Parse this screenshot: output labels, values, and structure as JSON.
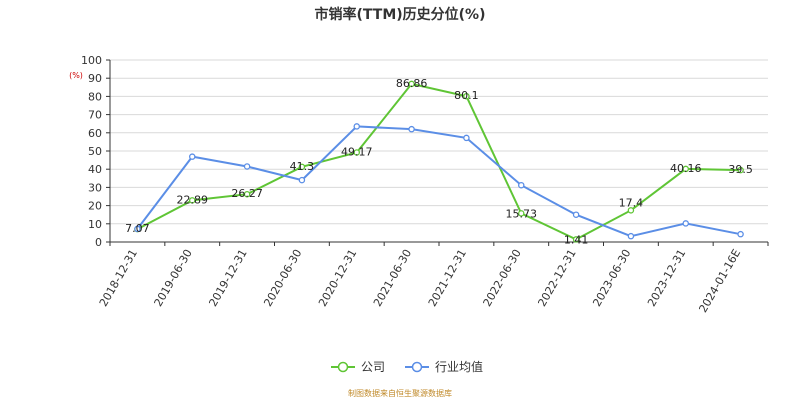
{
  "chart_data": {
    "type": "line",
    "title": "市销率(TTM)历史分位(%)",
    "y_unit": "(%)",
    "categories": [
      "2018-12-31",
      "2019-06-30",
      "2019-12-31",
      "2020-06-30",
      "2020-12-31",
      "2021-06-30",
      "2021-12-31",
      "2022-06-30",
      "2022-12-31",
      "2023-06-30",
      "2023-12-31",
      "2024-01-16E"
    ],
    "ylim": [
      0,
      100
    ],
    "yticks": [
      0,
      10,
      20,
      30,
      40,
      50,
      60,
      70,
      80,
      90,
      100
    ],
    "grid": true,
    "legend_position": "bottom-center",
    "series": [
      {
        "name": "公司",
        "color": "#5fc535",
        "values": [
          7.07,
          22.89,
          26.27,
          41.3,
          49.17,
          86.86,
          80.1,
          15.73,
          1.41,
          17.4,
          40.16,
          39.5
        ],
        "data_labels": [
          "7.07",
          "22.89",
          "26.27",
          "41.3",
          "49.17",
          "86.86",
          "80.1",
          "15.73",
          "1.41",
          "17.4",
          "40.16",
          "39.5"
        ]
      },
      {
        "name": "行业均值",
        "color": "#5b8ee6",
        "values": [
          7.2,
          46.9,
          41.5,
          34.0,
          63.5,
          62.0,
          57.2,
          31.2,
          15.0,
          3.2,
          10.2,
          4.3
        ]
      }
    ]
  },
  "source_text": "制图数据来自恒生聚源数据库"
}
